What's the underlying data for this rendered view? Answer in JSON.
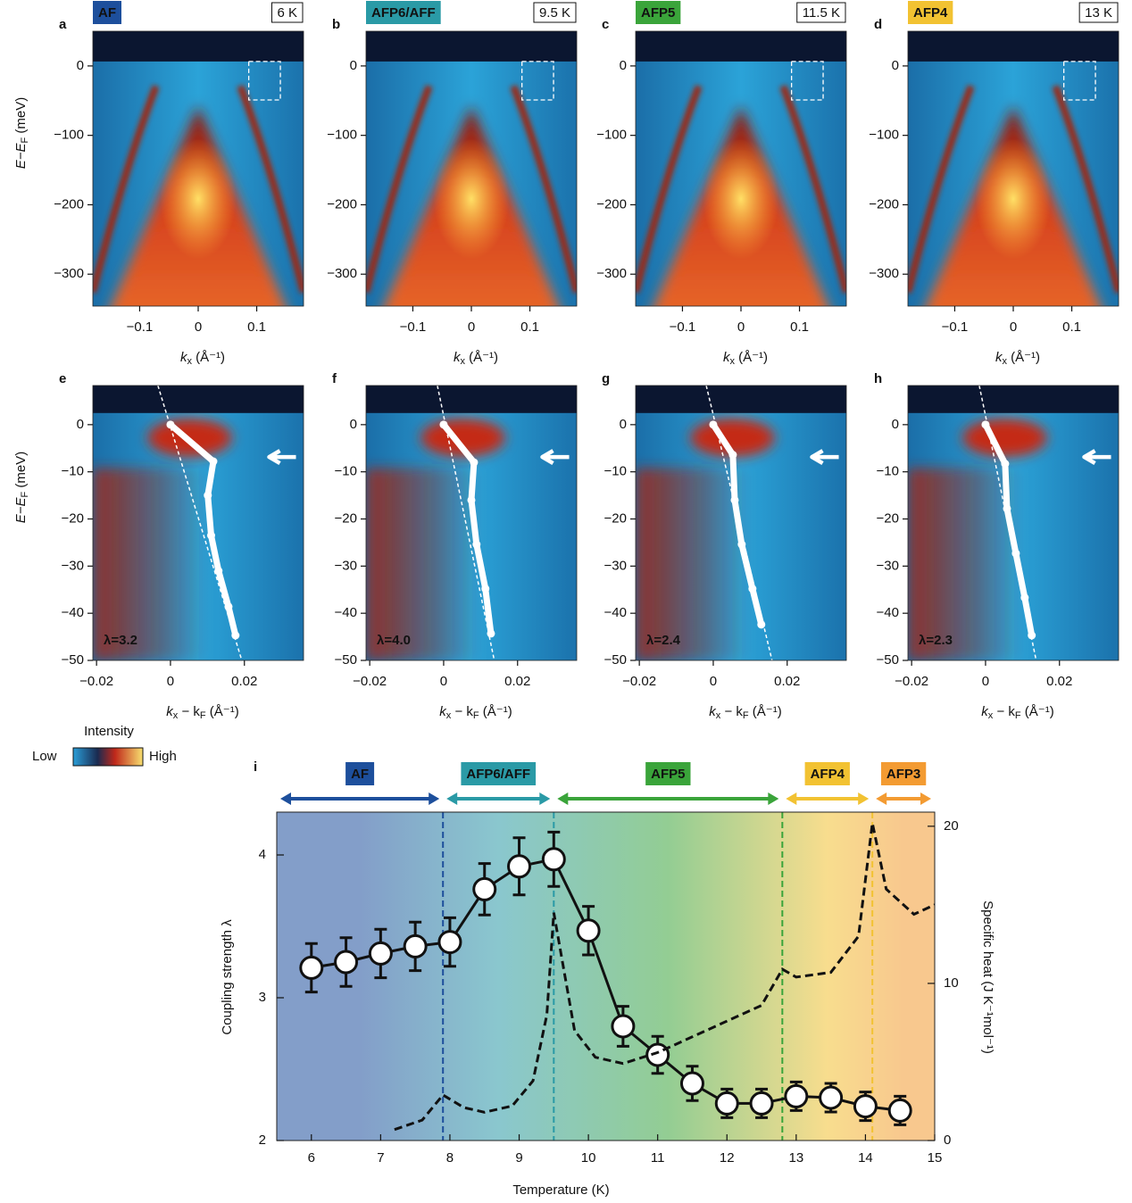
{
  "colorbar": {
    "title": "Intensity",
    "low": "Low",
    "high": "High"
  },
  "chart_data": [
    {
      "type": "image",
      "panel": "a",
      "phase": "AF",
      "phase_color": "#1d4f9c",
      "temperature": "6 K",
      "xlim": [
        -0.18,
        0.18
      ],
      "ylim": [
        -346,
        50
      ],
      "xticks": [
        {
          "value": -0.1,
          "label": "−0.1"
        },
        0,
        0.1
      ],
      "yticks": [
        0,
        {
          "value": -100,
          "label": "−100"
        },
        {
          "value": -200,
          "label": "−200"
        },
        {
          "value": -300,
          "label": "−300"
        }
      ],
      "xlabel": [
        "k",
        "x",
        " (Å⁻¹)"
      ],
      "ylabel": [
        "E−E",
        "F",
        " (meV)"
      ]
    },
    {
      "type": "image",
      "panel": "b",
      "phase": "AFP6/AFF",
      "phase_color": "#2a9aa6",
      "temperature": "9.5 K",
      "xlim": [
        -0.18,
        0.18
      ],
      "ylim": [
        -346,
        50
      ],
      "xticks": [
        {
          "value": -0.1,
          "label": "−0.1"
        },
        0,
        0.1
      ],
      "yticks": [
        0,
        {
          "value": -100,
          "label": "−100"
        },
        {
          "value": -200,
          "label": "−200"
        },
        {
          "value": -300,
          "label": "−300"
        }
      ],
      "xlabel": [
        "k",
        "x",
        " (Å⁻¹)"
      ]
    },
    {
      "type": "image",
      "panel": "c",
      "phase": "AFP5",
      "phase_color": "#3aa43a",
      "temperature": "11.5 K",
      "xlim": [
        -0.18,
        0.18
      ],
      "ylim": [
        -346,
        50
      ],
      "xticks": [
        {
          "value": -0.1,
          "label": "−0.1"
        },
        0,
        0.1
      ],
      "yticks": [
        0,
        {
          "value": -100,
          "label": "−100"
        },
        {
          "value": -200,
          "label": "−200"
        },
        {
          "value": -300,
          "label": "−300"
        }
      ],
      "xlabel": [
        "k",
        "x",
        " (Å⁻¹)"
      ]
    },
    {
      "type": "image",
      "panel": "d",
      "phase": "AFP4",
      "phase_color": "#f2c232",
      "temperature": "13 K",
      "xlim": [
        -0.18,
        0.18
      ],
      "ylim": [
        -346,
        50
      ],
      "xticks": [
        {
          "value": -0.1,
          "label": "−0.1"
        },
        0,
        0.1
      ],
      "yticks": [
        0,
        {
          "value": -100,
          "label": "−100"
        },
        {
          "value": -200,
          "label": "−200"
        },
        {
          "value": -300,
          "label": "−300"
        }
      ],
      "xlabel": [
        "k",
        "x",
        " (Å⁻¹)"
      ]
    },
    {
      "type": "dispersion",
      "panel": "e",
      "lambda": "λ=3.2",
      "xlim": [
        -0.021,
        0.036
      ],
      "ylim": [
        -50,
        8.3
      ],
      "xticks": [
        {
          "value": -0.02,
          "label": "−0.02"
        },
        0,
        0.02
      ],
      "yticks": [
        0,
        {
          "value": -10,
          "label": "−10"
        },
        {
          "value": -20,
          "label": "−20"
        },
        {
          "value": -30,
          "label": "−30"
        },
        {
          "value": -40,
          "label": "−40"
        },
        {
          "value": -50,
          "label": "−50"
        }
      ],
      "xlabel": [
        "k",
        "x",
        " − k",
        "F",
        " (Å⁻¹)"
      ],
      "ylabel": [
        "E−E",
        "F",
        " (meV)"
      ],
      "dispersion": {
        "x": [
          0,
          0.0116,
          0.0101,
          0.011,
          0.013,
          0.0157,
          0.0176
        ],
        "y": [
          0,
          -7.8,
          -15,
          -23.5,
          -31,
          -38.6,
          -44.7
        ]
      },
      "bare_band": {
        "x": [
          -0.0034,
          0.0193
        ],
        "y": [
          8.3,
          -50
        ]
      }
    },
    {
      "type": "dispersion",
      "panel": "f",
      "lambda": "λ=4.0",
      "xlim": [
        -0.021,
        0.036
      ],
      "ylim": [
        -50,
        8.3
      ],
      "xticks": [
        {
          "value": -0.02,
          "label": "−0.02"
        },
        0,
        0.02
      ],
      "yticks": [
        0,
        {
          "value": -10,
          "label": "−10"
        },
        {
          "value": -20,
          "label": "−20"
        },
        {
          "value": -30,
          "label": "−30"
        },
        {
          "value": -40,
          "label": "−40"
        },
        {
          "value": -50,
          "label": "−50"
        }
      ],
      "xlabel": [
        "k",
        "x",
        " − k",
        "F",
        " (Å⁻¹)"
      ],
      "dispersion": {
        "x": [
          0,
          0.0082,
          0.0075,
          0.0089,
          0.0113,
          0.0128
        ],
        "y": [
          0,
          -8,
          -16,
          -25.4,
          -34.8,
          -44.3
        ]
      },
      "bare_band": {
        "x": [
          -0.0017,
          0.0137
        ],
        "y": [
          8.3,
          -50
        ]
      }
    },
    {
      "type": "dispersion",
      "panel": "g",
      "lambda": "λ=2.4",
      "xlim": [
        -0.021,
        0.036
      ],
      "ylim": [
        -50,
        8.3
      ],
      "xticks": [
        {
          "value": -0.02,
          "label": "−0.02"
        },
        0,
        0.02
      ],
      "yticks": [
        0,
        {
          "value": -10,
          "label": "−10"
        },
        {
          "value": -20,
          "label": "−20"
        },
        {
          "value": -30,
          "label": "−30"
        },
        {
          "value": -40,
          "label": "−40"
        },
        {
          "value": -50,
          "label": "−50"
        }
      ],
      "xlabel": [
        "k",
        "x",
        " − k",
        "F",
        " (Å⁻¹)"
      ],
      "dispersion": {
        "x": [
          0,
          0.0053,
          0.0058,
          0.0077,
          0.0106,
          0.013
        ],
        "y": [
          0,
          -6.4,
          -16,
          -25.4,
          -34.8,
          -42.4
        ]
      },
      "bare_band": {
        "x": [
          -0.0019,
          0.0159
        ],
        "y": [
          8.3,
          -50
        ]
      }
    },
    {
      "type": "dispersion",
      "panel": "h",
      "lambda": "λ=2.3",
      "xlim": [
        -0.021,
        0.036
      ],
      "ylim": [
        -50,
        8.3
      ],
      "xticks": [
        {
          "value": -0.02,
          "label": "−0.02"
        },
        0,
        0.02
      ],
      "yticks": [
        0,
        {
          "value": -10,
          "label": "−10"
        },
        {
          "value": -20,
          "label": "−20"
        },
        {
          "value": -30,
          "label": "−30"
        },
        {
          "value": -40,
          "label": "−40"
        },
        {
          "value": -50,
          "label": "−50"
        }
      ],
      "xlabel": [
        "k",
        "x",
        " − k",
        "F",
        " (Å⁻¹)"
      ],
      "dispersion": {
        "x": [
          0,
          0.0053,
          0.0058,
          0.0082,
          0.0106,
          0.0125
        ],
        "y": [
          0,
          -8.3,
          -17.8,
          -27.3,
          -36.7,
          -44.7
        ]
      },
      "bare_band": {
        "x": [
          -0.0017,
          0.0137
        ],
        "y": [
          8.3,
          -50
        ]
      }
    },
    {
      "type": "line",
      "panel": "i",
      "xlabel": "Temperature (K)",
      "ylabel": "Coupling strength λ",
      "y2label": "Specific heat (J K⁻¹mol⁻¹)",
      "xlim": [
        5.5,
        15
      ],
      "ylim": [
        2,
        4.3
      ],
      "y2lim": [
        0,
        20.9
      ],
      "xticks": [
        6,
        7,
        8,
        9,
        10,
        11,
        12,
        13,
        14,
        15
      ],
      "yticks": [
        2,
        3,
        4
      ],
      "y2ticks": [
        0,
        10,
        20
      ],
      "phases": [
        {
          "name": "AF",
          "color": "#1d4f9c",
          "range": [
            5.5,
            7.9
          ]
        },
        {
          "name": "AFP6/AFF",
          "color": "#2a9aa6",
          "range": [
            7.9,
            9.5
          ]
        },
        {
          "name": "AFP5",
          "color": "#3aa43a",
          "range": [
            9.5,
            12.8
          ]
        },
        {
          "name": "AFP4",
          "color": "#f2c232",
          "range": [
            12.8,
            14.1
          ]
        },
        {
          "name": "AFP3",
          "color": "#f39b32",
          "range": [
            14.1,
            15
          ]
        }
      ],
      "series": [
        {
          "color": "#111111",
          "x": [
            6,
            6.5,
            7,
            7.5,
            8,
            8.5,
            9,
            9.5,
            10,
            10.5,
            11,
            11.5,
            12,
            12.5,
            13,
            13.5,
            14,
            14.5
          ],
          "values": [
            3.21,
            3.25,
            3.31,
            3.36,
            3.39,
            3.76,
            3.92,
            3.97,
            3.47,
            2.8,
            2.6,
            2.4,
            2.26,
            2.26,
            2.31,
            2.3,
            2.24,
            2.21
          ],
          "errors": [
            0.17,
            0.17,
            0.17,
            0.17,
            0.17,
            0.18,
            0.2,
            0.19,
            0.17,
            0.14,
            0.13,
            0.12,
            0.1,
            0.1,
            0.1,
            0.1,
            0.1,
            0.1
          ]
        },
        {
          "color": "#111111",
          "axis": "y2",
          "dashed": true,
          "x": [
            7.2,
            7.6,
            7.9,
            8.2,
            8.5,
            8.9,
            9.2,
            9.4,
            9.5,
            9.6,
            9.8,
            10.1,
            10.5,
            11,
            11.5,
            12,
            12.5,
            12.8,
            13,
            13.5,
            13.9,
            14.1,
            14.3,
            14.7,
            15
          ],
          "values": [
            0.7,
            1.3,
            2.9,
            2.1,
            1.8,
            2.2,
            3.8,
            8,
            14.5,
            12,
            7,
            5.3,
            4.9,
            5.6,
            6.6,
            7.6,
            8.6,
            10.9,
            10.4,
            10.7,
            13,
            20.2,
            16,
            14.4,
            15
          ]
        }
      ]
    }
  ]
}
